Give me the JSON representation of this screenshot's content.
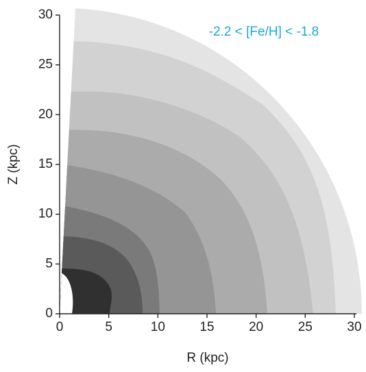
{
  "chart_data": {
    "type": "contour",
    "annotation": "-2.2 < [Fe/H] < -1.8",
    "annotation_color": "#1aa7e0",
    "x_label": "R (kpc)",
    "y_label": "Z (kpc)",
    "xlim": [
      0,
      30
    ],
    "ylim": [
      0,
      30
    ],
    "xticks": [
      0,
      5,
      10,
      15,
      20,
      25,
      30
    ],
    "yticks": [
      0,
      5,
      10,
      15,
      20,
      25,
      30
    ]
  }
}
